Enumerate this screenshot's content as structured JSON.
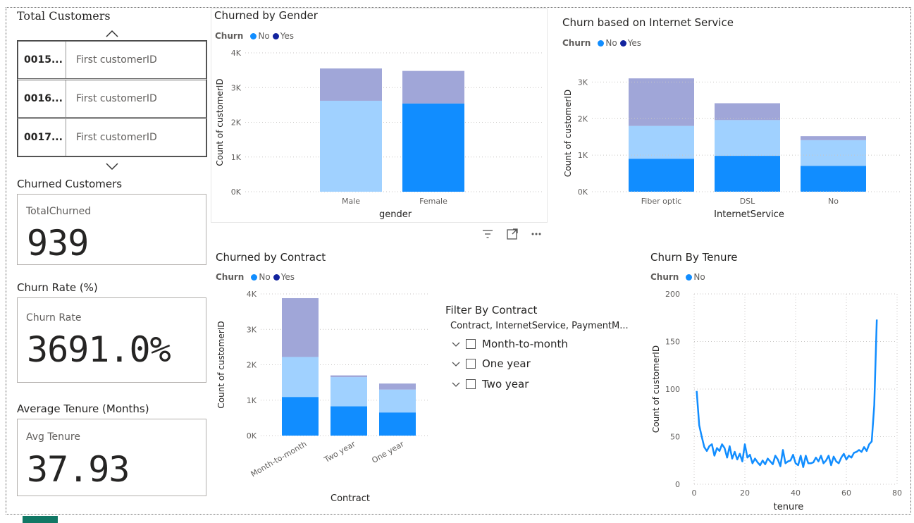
{
  "colors": {
    "no": "#118dff",
    "yes": "#12239e",
    "no_light": "#a0d1ff",
    "yes_light": "#a0a6d8",
    "line": "#118dff"
  },
  "total_customers": {
    "title": "Total Customers",
    "rows": [
      {
        "id": "0015...",
        "value": "First customerID"
      },
      {
        "id": "0016...",
        "value": "First customerID"
      },
      {
        "id": "0017...",
        "value": "First customerID"
      }
    ]
  },
  "churned_customers": {
    "title": "Churned Customers",
    "label": "TotalChurned",
    "value": "939"
  },
  "churn_rate": {
    "title": "Churn Rate (%)",
    "label": "Churn Rate",
    "value": "3691.0%"
  },
  "avg_tenure": {
    "title": "Average Tenure (Months)",
    "label": "Avg Tenure",
    "value": "37.93"
  },
  "legend": {
    "title": "Churn",
    "no": "No",
    "yes": "Yes"
  },
  "visual_toolbar": {
    "filter_icon": "filter-icon",
    "focus_icon": "focus-mode-icon",
    "more_icon": "more-options-icon"
  },
  "filter_slicer": {
    "title": "Filter By Contract",
    "subtitle": "Contract, InternetService, PaymentM...",
    "items": [
      "Month-to-month",
      "One year",
      "Two year"
    ]
  },
  "chart_data": [
    {
      "type": "bar",
      "title": "Churned by Gender",
      "xlabel": "gender",
      "ylabel": "Count of customerID",
      "categories": [
        "Male",
        "Female"
      ],
      "series": [
        {
          "name": "No",
          "values": [
            2620,
            2540
          ]
        },
        {
          "name": "Yes",
          "values": [
            930,
            940
          ]
        }
      ],
      "ylim": [
        0,
        4000
      ],
      "yticks": [
        "0K",
        "1K",
        "2K",
        "3K",
        "4K"
      ],
      "stacked": true,
      "grid": true,
      "legend": "top-left"
    },
    {
      "type": "bar",
      "title": "Churn based on Internet Service",
      "xlabel": "InternetService",
      "ylabel": "Count of customerID",
      "categories": [
        "Fiber optic",
        "DSL",
        "No"
      ],
      "series": [
        {
          "name": "No",
          "values": [
            1800,
            1960,
            1410
          ]
        },
        {
          "name": "Yes",
          "values": [
            1300,
            460,
            110
          ]
        }
      ],
      "ylim": [
        0,
        3200
      ],
      "yticks": [
        "0K",
        "1K",
        "2K",
        "3K"
      ],
      "stacked": true,
      "grid": true,
      "legend": "top-left"
    },
    {
      "type": "bar",
      "title": "Churned by Contract",
      "xlabel": "Contract",
      "ylabel": "Count of customerID",
      "categories": [
        "Month-to-month",
        "Two year",
        "One year"
      ],
      "series": [
        {
          "name": "No",
          "values": [
            2220,
            1650,
            1300
          ]
        },
        {
          "name": "Yes",
          "values": [
            1660,
            50,
            170
          ]
        }
      ],
      "ylim": [
        0,
        4000
      ],
      "yticks": [
        "0K",
        "1K",
        "2K",
        "3K",
        "4K"
      ],
      "stacked": true,
      "grid": true,
      "legend": "top-left"
    },
    {
      "type": "line",
      "title": "Churn By Tenure",
      "xlabel": "tenure",
      "ylabel": "Count of customerID",
      "series": [
        {
          "name": "No",
          "x": [
            1,
            2,
            3,
            4,
            5,
            6,
            7,
            8,
            9,
            10,
            11,
            12,
            13,
            14,
            15,
            16,
            17,
            18,
            19,
            20,
            21,
            22,
            23,
            24,
            25,
            26,
            27,
            28,
            29,
            30,
            31,
            32,
            33,
            34,
            35,
            36,
            37,
            38,
            39,
            40,
            41,
            42,
            43,
            44,
            45,
            46,
            47,
            48,
            49,
            50,
            51,
            52,
            53,
            54,
            55,
            56,
            57,
            58,
            59,
            60,
            61,
            62,
            63,
            64,
            65,
            66,
            67,
            68,
            69,
            70,
            71,
            72
          ],
          "y": [
            98,
            62,
            50,
            39,
            35,
            40,
            42,
            30,
            38,
            35,
            42,
            38,
            28,
            40,
            27,
            34,
            26,
            32,
            24,
            42,
            28,
            31,
            22,
            27,
            23,
            20,
            25,
            21,
            27,
            24,
            21,
            30,
            26,
            19,
            36,
            22,
            24,
            25,
            31,
            22,
            20,
            30,
            18,
            30,
            22,
            22,
            23,
            28,
            24,
            30,
            22,
            25,
            30,
            20,
            29,
            24,
            22,
            28,
            32,
            26,
            30,
            28,
            33,
            34,
            36,
            34,
            39,
            35,
            42,
            45,
            83,
            173
          ]
        }
      ],
      "xlim": [
        0,
        80
      ],
      "ylim": [
        0,
        200
      ],
      "xticks": [
        0,
        20,
        40,
        60,
        80
      ],
      "yticks": [
        0,
        50,
        100,
        150,
        200
      ],
      "grid": true,
      "legend": "top-left"
    }
  ]
}
